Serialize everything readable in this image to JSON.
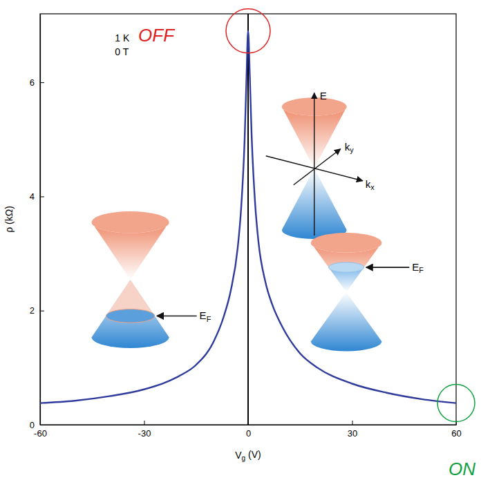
{
  "chart_data": {
    "type": "line",
    "x": [
      -60,
      -50,
      -40,
      -30,
      -20,
      -15,
      -10,
      -7,
      -5,
      -3,
      -2,
      -1,
      -0.5,
      0,
      0.5,
      1,
      2,
      3,
      5,
      7,
      10,
      15,
      20,
      30,
      40,
      50,
      60
    ],
    "values": [
      0.38,
      0.42,
      0.5,
      0.62,
      0.85,
      1.05,
      1.45,
      1.9,
      2.35,
      3.1,
      3.8,
      5.0,
      6.0,
      6.9,
      6.1,
      5.1,
      3.9,
      3.2,
      2.5,
      2.1,
      1.7,
      1.25,
      1.0,
      0.72,
      0.56,
      0.45,
      0.38
    ],
    "color": "#2e3a9c",
    "xlim": [
      -60,
      60
    ],
    "ylim": [
      0,
      7.2
    ],
    "xticks": [
      -60,
      -30,
      0,
      30,
      60
    ],
    "yticks": [
      0,
      2,
      4,
      6
    ],
    "x_label": {
      "main": "V",
      "sub": "g",
      "tail": " (V)"
    },
    "y_label": "ρ (kΩ)",
    "annotations": [
      {
        "text": "1 K"
      },
      {
        "text": "0 T"
      },
      {
        "text": "OFF",
        "color": "#e02020"
      },
      {
        "text": "ON",
        "color": "#10a040"
      }
    ],
    "inset_labels": {
      "energy": "E",
      "ky": {
        "main": "k",
        "sub": "y"
      },
      "kx": {
        "main": "k",
        "sub": "x"
      },
      "fermi": {
        "main": "E",
        "sub": "F"
      }
    }
  }
}
